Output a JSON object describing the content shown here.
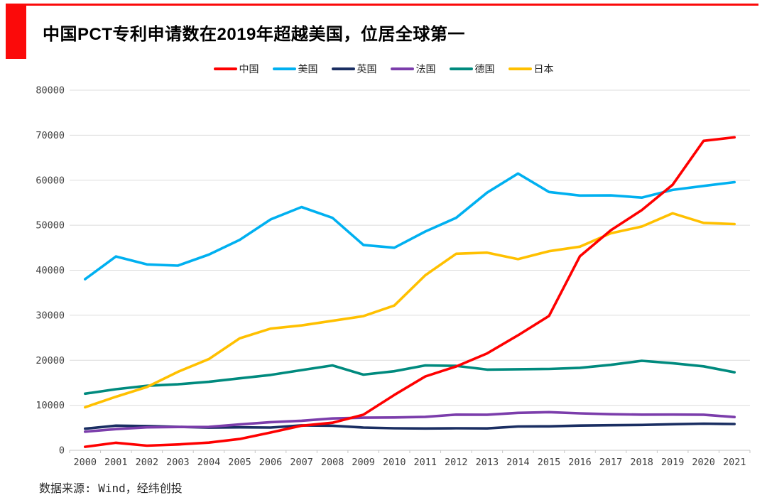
{
  "page": {
    "title": "中国PCT专利申请数在2019年超越美国，位居全球第一",
    "source": "数据来源: Wind，经纬创投",
    "accent_color": "#fb0a0a"
  },
  "chart_data": {
    "type": "line",
    "title": "中国PCT专利申请数在2019年超越美国，位居全球第一",
    "xlabel": "",
    "ylabel": "",
    "ylim": [
      0,
      80000
    ],
    "ytick_step": 10000,
    "yticks": [
      0,
      10000,
      20000,
      30000,
      40000,
      50000,
      60000,
      70000,
      80000
    ],
    "grid": "horizontal",
    "legend_position": "top-center",
    "categories": [
      "2000",
      "2001",
      "2002",
      "2003",
      "2004",
      "2005",
      "2006",
      "2007",
      "2008",
      "2009",
      "2010",
      "2011",
      "2012",
      "2013",
      "2014",
      "2015",
      "2016",
      "2017",
      "2018",
      "2019",
      "2020",
      "2021"
    ],
    "series": [
      {
        "name": "中国",
        "color": "#fe0000",
        "values": [
          781,
          1670,
          1018,
          1295,
          1706,
          2503,
          3942,
          5455,
          6120,
          7900,
          12296,
          16402,
          18617,
          21516,
          25539,
          29846,
          43091,
          48882,
          53345,
          58990,
          68750,
          69540
        ]
      },
      {
        "name": "美国",
        "color": "#00b0f0",
        "values": [
          38007,
          43055,
          41296,
          41028,
          43464,
          46742,
          51280,
          54043,
          51642,
          45618,
          45008,
          48596,
          51642,
          57239,
          61492,
          57385,
          56595,
          56624,
          56142,
          57840,
          58730,
          59570
        ]
      },
      {
        "name": "英国",
        "color": "#1a2e62",
        "values": [
          4795,
          5482,
          5376,
          5206,
          5027,
          5097,
          5045,
          5542,
          5466,
          5044,
          4891,
          4848,
          4895,
          4865,
          5282,
          5313,
          5496,
          5567,
          5641,
          5786,
          5912,
          5841
        ]
      },
      {
        "name": "法国",
        "color": "#7b3dab",
        "values": [
          4138,
          4707,
          5089,
          5171,
          5184,
          5742,
          6256,
          6560,
          7072,
          7237,
          7288,
          7438,
          7927,
          7899,
          8319,
          8476,
          8208,
          8012,
          7914,
          7934,
          7904,
          7380
        ]
      },
      {
        "name": "德国",
        "color": "#008a7e",
        "values": [
          12582,
          13566,
          14326,
          14662,
          15214,
          15985,
          16736,
          17821,
          18855,
          16797,
          17568,
          18851,
          18764,
          17927,
          18008,
          18072,
          18315,
          18982,
          19883,
          19353,
          18643,
          17322
        ]
      },
      {
        "name": "日本",
        "color": "#ffc000",
        "values": [
          9567,
          11904,
          14063,
          17414,
          20264,
          24869,
          27025,
          27743,
          28760,
          29802,
          32156,
          38874,
          43660,
          43918,
          42459,
          44235,
          45239,
          48208,
          49702,
          52660,
          50520,
          50260
        ]
      }
    ],
    "draw_order": [
      "美国",
      "英国",
      "法国",
      "德国",
      "日本",
      "中国"
    ]
  }
}
